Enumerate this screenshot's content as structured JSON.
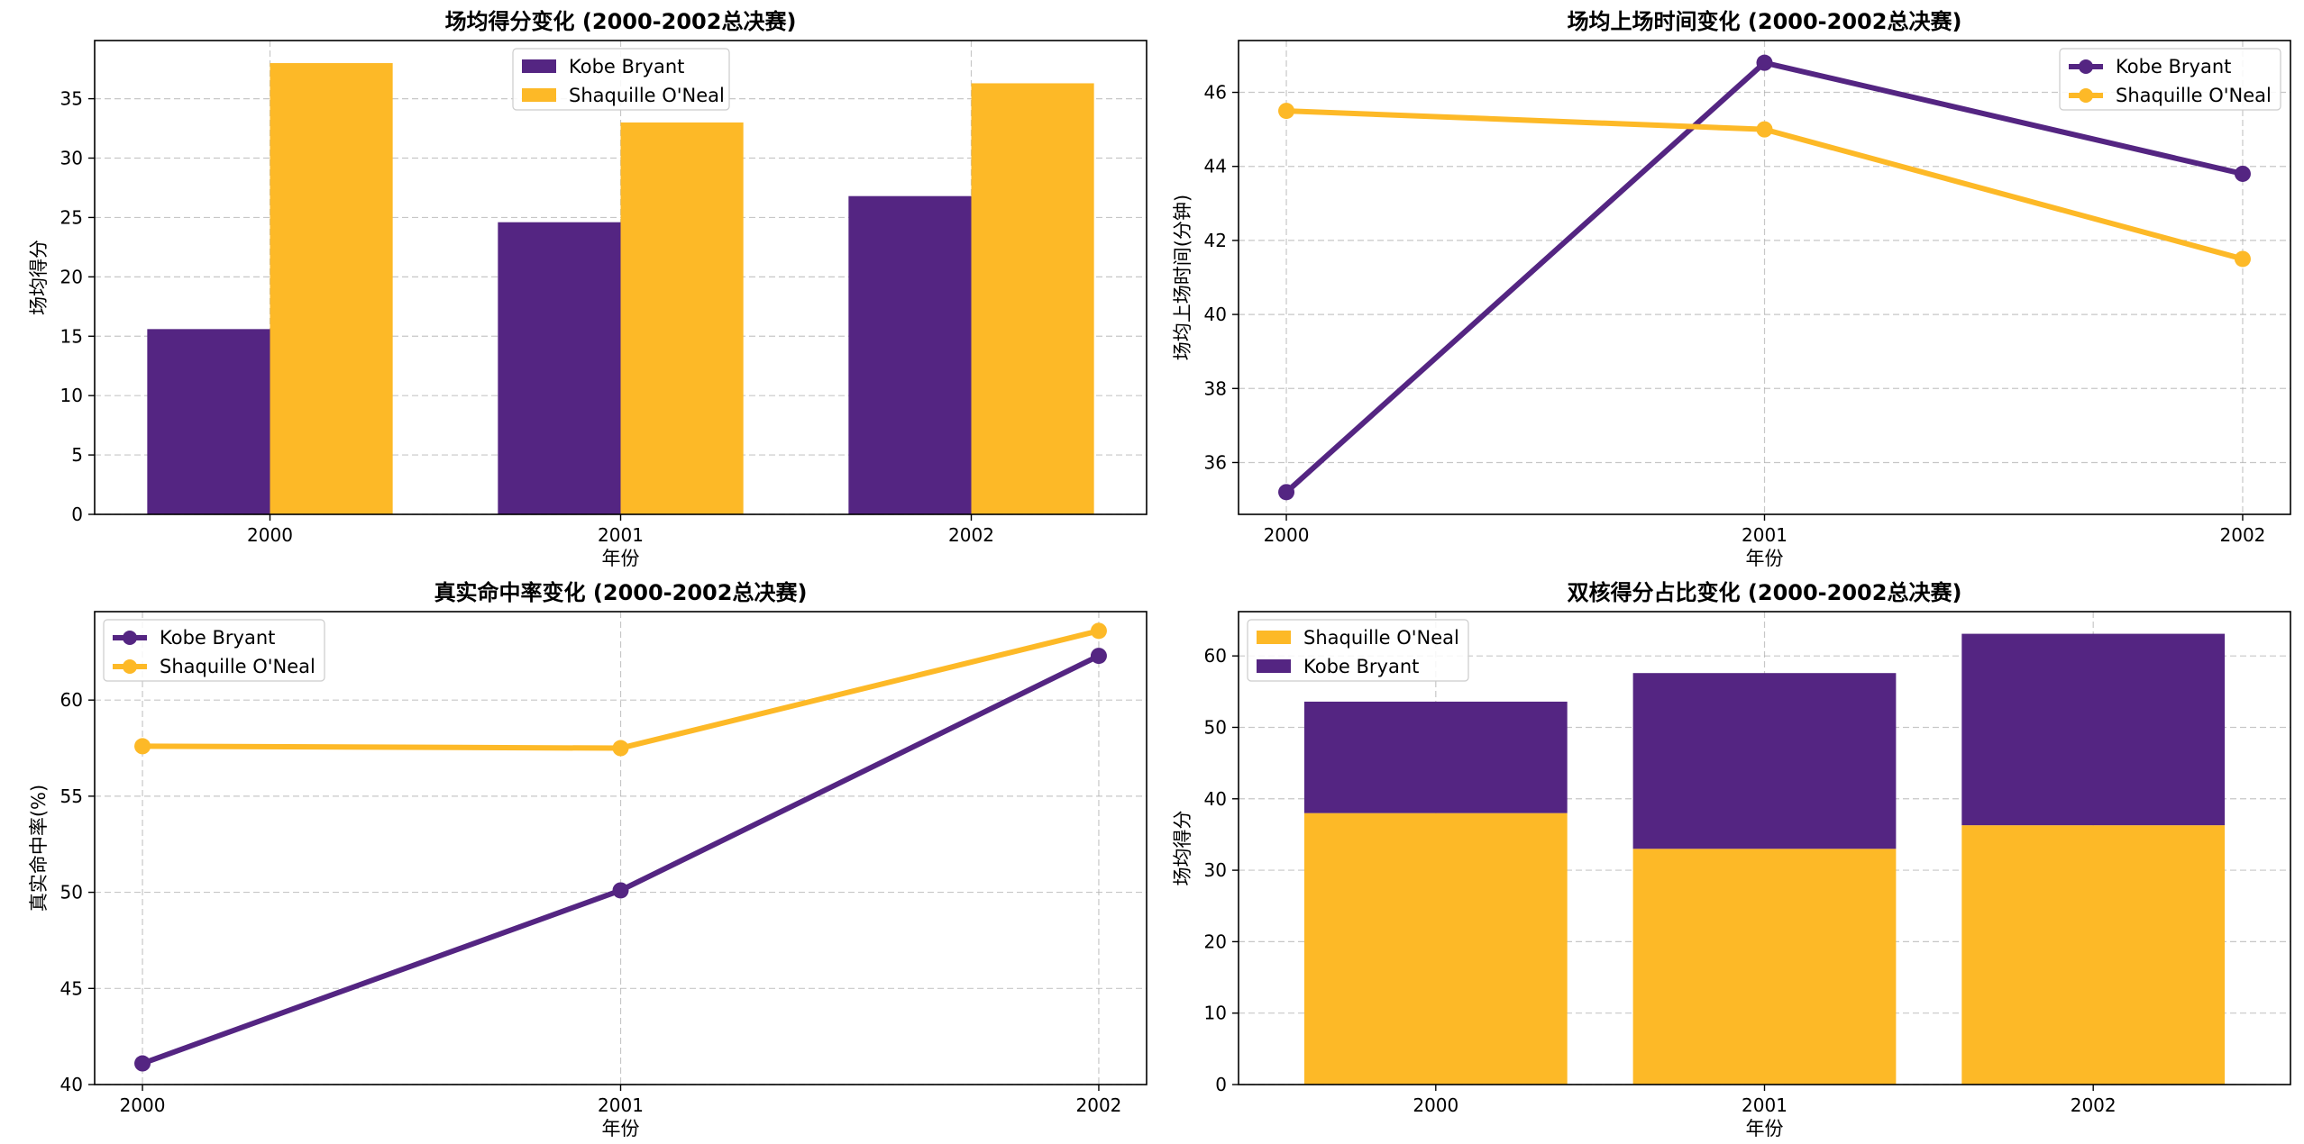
{
  "colors": {
    "kobe": "#542582",
    "shaq": "#fdb927",
    "grid": "#b0b0b0",
    "axis": "#000000"
  },
  "chart_data": [
    {
      "id": "ppg",
      "type": "bar",
      "title": "场均得分变化 (2000-2002总决赛)",
      "xlabel": "年份",
      "ylabel": "场均得分",
      "categories": [
        "2000",
        "2001",
        "2002"
      ],
      "series": [
        {
          "name": "Kobe Bryant",
          "color_key": "kobe",
          "values": [
            15.6,
            24.6,
            26.8
          ]
        },
        {
          "name": "Shaquille O'Neal",
          "color_key": "shaq",
          "values": [
            38.0,
            33.0,
            36.3
          ]
        }
      ],
      "ylim": [
        0,
        39.9
      ],
      "yticks": [
        0,
        5,
        10,
        15,
        20,
        25,
        30,
        35
      ],
      "grid": true,
      "legend": "top-center"
    },
    {
      "id": "minutes",
      "type": "line",
      "title": "场均上场时间变化 (2000-2002总决赛)",
      "xlabel": "年份",
      "ylabel": "场均上场时间(分钟)",
      "categories": [
        "2000",
        "2001",
        "2002"
      ],
      "series": [
        {
          "name": "Kobe Bryant",
          "color_key": "kobe",
          "values": [
            35.2,
            46.8,
            43.8
          ]
        },
        {
          "name": "Shaquille O'Neal",
          "color_key": "shaq",
          "values": [
            45.5,
            45.0,
            41.5
          ]
        }
      ],
      "ylim": [
        34.6,
        47.4
      ],
      "yticks": [
        36,
        38,
        40,
        42,
        44,
        46
      ],
      "grid": true,
      "legend": "top-right"
    },
    {
      "id": "ts",
      "type": "line",
      "title": "真实命中率变化 (2000-2002总决赛)",
      "xlabel": "年份",
      "ylabel": "真实命中率(%)",
      "categories": [
        "2000",
        "2001",
        "2002"
      ],
      "series": [
        {
          "name": "Kobe Bryant",
          "color_key": "kobe",
          "values": [
            41.1,
            50.1,
            62.3
          ]
        },
        {
          "name": "Shaquille O'Neal",
          "color_key": "shaq",
          "values": [
            57.6,
            57.5,
            63.6
          ]
        }
      ],
      "ylim": [
        40,
        64.6
      ],
      "yticks": [
        40,
        45,
        50,
        55,
        60
      ],
      "grid": true,
      "legend": "top-left"
    },
    {
      "id": "share",
      "type": "bar",
      "stacked": true,
      "title": "双核得分占比变化 (2000-2002总决赛)",
      "xlabel": "年份",
      "ylabel": "场均得分",
      "categories": [
        "2000",
        "2001",
        "2002"
      ],
      "series": [
        {
          "name": "Shaquille O'Neal",
          "color_key": "shaq",
          "values": [
            38.0,
            33.0,
            36.3
          ]
        },
        {
          "name": "Kobe Bryant",
          "color_key": "kobe",
          "values": [
            15.6,
            24.6,
            26.8
          ]
        }
      ],
      "ylim": [
        0,
        66.2
      ],
      "yticks": [
        0,
        10,
        20,
        30,
        40,
        50,
        60
      ],
      "grid": true,
      "legend": "top-left"
    }
  ]
}
